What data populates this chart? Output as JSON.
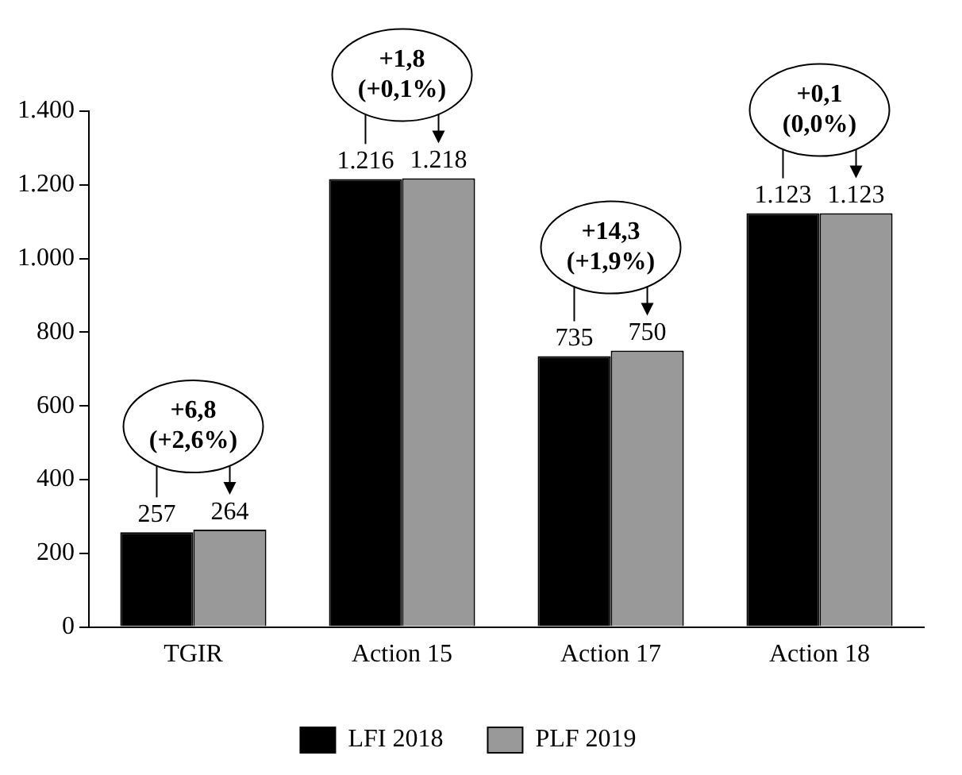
{
  "chart_data": {
    "type": "bar",
    "categories": [
      "TGIR",
      "Action 15",
      "Action 17",
      "Action 18"
    ],
    "series": [
      {
        "name": "LFI 2018",
        "color": "#000000",
        "values": [
          257,
          1216,
          735,
          1123
        ],
        "value_labels": [
          "257",
          "1.216",
          "735",
          "1.123"
        ]
      },
      {
        "name": "PLF 2019",
        "color": "#999999",
        "values": [
          264,
          1218,
          750,
          1123
        ],
        "value_labels": [
          "264",
          "1.218",
          "750",
          "1.123"
        ]
      }
    ],
    "ylim": [
      0,
      1400
    ],
    "yticks": [
      0,
      200,
      400,
      600,
      800,
      {
        "value": 1000,
        "label": "1.000"
      },
      {
        "value": 1200,
        "label": "1.200"
      },
      {
        "value": 1400,
        "label": "1.400"
      }
    ],
    "grid": false,
    "legend": "bottom",
    "annotations": [
      "+6,8 (+2,6%)",
      "+1,8 (+0,1%)",
      "+14,3 (+1,9%)",
      "+0,1 (0,0%)"
    ]
  }
}
